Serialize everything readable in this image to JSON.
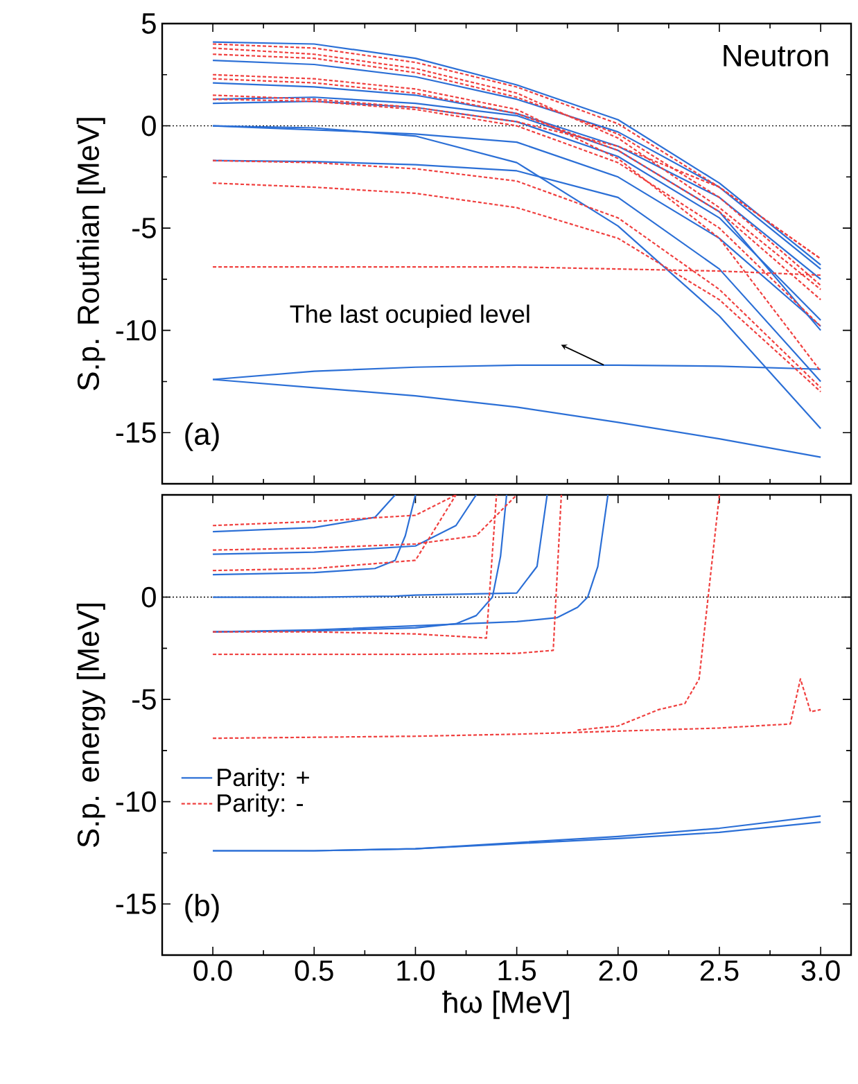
{
  "chart_data": [
    {
      "type": "line",
      "ylabel": "S.p. Routhian [MeV]",
      "xlim": [
        -0.25,
        3.15
      ],
      "ylim": [
        -17.5,
        5
      ],
      "xticks": [
        0.0,
        0.5,
        1.0,
        1.5,
        2.0,
        2.5,
        3.0
      ],
      "yticks": [
        -15,
        -10,
        -5,
        0,
        5
      ],
      "tick_labels": "y",
      "annotations": [
        "Neutron",
        "(a)",
        "The last ocupied level"
      ],
      "ref_lines": [
        {
          "axis": "y",
          "value": 0,
          "color": "#000000",
          "line_style": "dotted"
        }
      ],
      "series": [
        {
          "color": "#2b6fd6",
          "line_style": "solid",
          "x": [
            0,
            0.5,
            1,
            1.5,
            2,
            2.5,
            3
          ],
          "values": [
            -12.4,
            -12.8,
            -13.2,
            -13.75,
            -14.5,
            -15.3,
            -16.2
          ]
        },
        {
          "color": "#2b6fd6",
          "line_style": "solid",
          "x": [
            0,
            0.5,
            1,
            1.5,
            2,
            2.5,
            3
          ],
          "values": [
            -12.4,
            -12.0,
            -11.8,
            -11.7,
            -11.7,
            -11.75,
            -11.9
          ]
        },
        {
          "color": "#2b6fd6",
          "line_style": "solid",
          "x": [
            0,
            0.5,
            1,
            1.5,
            2,
            2.5,
            3
          ],
          "values": [
            0,
            -0.1,
            -0.5,
            -1.8,
            -4.9,
            -9.3,
            -14.8
          ]
        },
        {
          "color": "#2b6fd6",
          "line_style": "solid",
          "x": [
            0,
            0.5,
            1,
            1.5,
            2,
            2.5,
            3
          ],
          "values": [
            -1.7,
            -1.75,
            -1.9,
            -2.2,
            -3.5,
            -7,
            -12.5
          ]
        },
        {
          "color": "#2b6fd6",
          "line_style": "solid",
          "x": [
            0,
            0.5,
            1,
            1.5,
            2,
            2.5,
            3
          ],
          "values": [
            0,
            -0.2,
            -0.4,
            -0.8,
            -2.5,
            -5.5,
            -9.8
          ]
        },
        {
          "color": "#2b6fd6",
          "line_style": "solid",
          "x": [
            0,
            0.5,
            1,
            1.5,
            2,
            2.5,
            3
          ],
          "values": [
            1.1,
            1.2,
            0.9,
            0.2,
            -1.5,
            -4.5,
            -9.5
          ]
        },
        {
          "color": "#2b6fd6",
          "line_style": "solid",
          "x": [
            0,
            0.5,
            1,
            1.5,
            2,
            2.5,
            3
          ],
          "values": [
            2.1,
            1.9,
            1.5,
            0.6,
            -1.0,
            -3.5,
            -7.5
          ]
        },
        {
          "color": "#2b6fd6",
          "line_style": "solid",
          "x": [
            0,
            0.5,
            1,
            1.5,
            2,
            2.5,
            3
          ],
          "values": [
            3.2,
            3.0,
            2.4,
            1.3,
            -0.3,
            -3.0,
            -7.0
          ]
        },
        {
          "color": "#2b6fd6",
          "line_style": "solid",
          "x": [
            0,
            0.5,
            1,
            1.5,
            2,
            2.5,
            3
          ],
          "values": [
            4.1,
            4.0,
            3.3,
            2.0,
            0.3,
            -2.8,
            -6.8
          ]
        },
        {
          "color": "#2b6fd6",
          "line_style": "solid",
          "x": [
            0,
            0.5,
            1,
            1.5,
            2,
            2.5,
            3
          ],
          "values": [
            1.3,
            1.4,
            1.1,
            0.5,
            -1.2,
            -4.2,
            -10.0
          ]
        },
        {
          "color": "#f0403f",
          "line_style": "dashed",
          "x": [
            0,
            0.5,
            1,
            1.5,
            2,
            2.5,
            3
          ],
          "values": [
            -6.9,
            -6.9,
            -6.9,
            -6.9,
            -7.0,
            -7.1,
            -7.3
          ]
        },
        {
          "color": "#f0403f",
          "line_style": "dashed",
          "x": [
            0,
            0.5,
            1,
            1.5,
            2,
            2.5,
            3
          ],
          "values": [
            -2.8,
            -3.0,
            -3.3,
            -4.0,
            -5.5,
            -8.5,
            -13
          ]
        },
        {
          "color": "#f0403f",
          "line_style": "dashed",
          "x": [
            0,
            0.5,
            1,
            1.5,
            2,
            2.5,
            3
          ],
          "values": [
            -1.7,
            -1.8,
            -2.1,
            -2.7,
            -4.5,
            -8.0,
            -12.8
          ]
        },
        {
          "color": "#f0403f",
          "line_style": "dashed",
          "x": [
            0,
            0.5,
            1,
            1.5,
            2,
            2.5,
            3
          ],
          "values": [
            1.3,
            1.2,
            0.8,
            0,
            -1.8,
            -5,
            -9.8
          ]
        },
        {
          "color": "#f0403f",
          "line_style": "dashed",
          "x": [
            0,
            0.5,
            1,
            1.5,
            2,
            2.5,
            3
          ],
          "values": [
            2.3,
            2.1,
            1.6,
            0.6,
            -1.2,
            -4.2,
            -8.5
          ]
        },
        {
          "color": "#f0403f",
          "line_style": "dashed",
          "x": [
            0,
            0.5,
            1,
            1.5,
            2,
            2.5,
            3
          ],
          "values": [
            3.5,
            3.3,
            2.6,
            1.4,
            -0.4,
            -3.5,
            -7.8
          ]
        },
        {
          "color": "#f0403f",
          "line_style": "dashed",
          "x": [
            0,
            0.5,
            1,
            1.5,
            2,
            2.5,
            3
          ],
          "values": [
            4.0,
            3.8,
            3.1,
            1.9,
            0.1,
            -3.0,
            -6.5
          ]
        },
        {
          "color": "#f0403f",
          "line_style": "dashed",
          "x": [
            0,
            0.5,
            1,
            1.5,
            2,
            2.5,
            3
          ],
          "values": [
            3.8,
            3.5,
            2.8,
            1.6,
            -0.6,
            -4.0,
            -8.0
          ]
        },
        {
          "color": "#f0403f",
          "line_style": "dashed",
          "x": [
            0,
            0.5,
            1,
            1.5,
            2,
            2.5,
            3
          ],
          "values": [
            2.5,
            2.3,
            1.8,
            0.8,
            -1.6,
            -5.5,
            -12.0
          ]
        },
        {
          "color": "#f0403f",
          "line_style": "dashed",
          "x": [
            0,
            0.5,
            1,
            1.5,
            2,
            2.5,
            3
          ],
          "values": [
            1.5,
            1.3,
            0.9,
            0.2,
            -1.0,
            -3.0,
            -6.5
          ]
        }
      ]
    },
    {
      "type": "line",
      "xlabel": "ħω [MeV]",
      "ylabel": "S.p. energy [MeV]",
      "xlim": [
        -0.25,
        3.15
      ],
      "ylim": [
        -17.5,
        5
      ],
      "xticks": [
        {
          "value": 0,
          "label": "0.0"
        },
        0.5,
        {
          "value": 1,
          "label": "1.0"
        },
        1.5,
        {
          "value": 2,
          "label": "2.0"
        },
        2.5,
        {
          "value": 3,
          "label": "3.0"
        }
      ],
      "yticks": [
        -15,
        -10,
        -5,
        0
      ],
      "legend": "left",
      "annotations": [
        "(b)"
      ],
      "ref_lines": [
        {
          "axis": "y",
          "value": 0,
          "color": "#000000",
          "line_style": "dotted"
        }
      ],
      "series": [
        {
          "name": "Parity: +",
          "color": "#2b6fd6",
          "line_style": "solid",
          "x": [
            0,
            0.5,
            1,
            1.5,
            2,
            2.5,
            3
          ],
          "values": [
            -12.4,
            -12.4,
            -12.3,
            -12.0,
            -11.7,
            -11.3,
            -10.7
          ]
        },
        {
          "color": "#2b6fd6",
          "line_style": "solid",
          "x": [
            0,
            0.5,
            1,
            1.5,
            2,
            2.5,
            3
          ],
          "values": [
            -12.4,
            -12.4,
            -12.3,
            -12.05,
            -11.8,
            -11.5,
            -11.0
          ]
        },
        {
          "color": "#2b6fd6",
          "line_style": "solid",
          "x": [
            0,
            0.5,
            1,
            1.5,
            1.7,
            1.8,
            1.85,
            1.9,
            1.95
          ],
          "values": [
            -1.7,
            -1.6,
            -1.4,
            -1.2,
            -1.0,
            -0.5,
            0,
            1.5,
            5
          ]
        },
        {
          "color": "#2b6fd6",
          "line_style": "solid",
          "x": [
            0,
            0.5,
            1,
            1.2,
            1.3,
            1.38,
            1.42,
            1.45
          ],
          "values": [
            -1.7,
            -1.65,
            -1.5,
            -1.3,
            -0.9,
            0,
            2,
            5
          ]
        },
        {
          "color": "#2b6fd6",
          "line_style": "solid",
          "x": [
            0,
            0.5,
            0.9,
            1.0,
            1.5,
            1.6,
            1.65
          ],
          "values": [
            0,
            0,
            0.05,
            0.1,
            0.2,
            1.5,
            5
          ]
        },
        {
          "color": "#2b6fd6",
          "line_style": "solid",
          "x": [
            0,
            0.5,
            0.8,
            0.9,
            0.95,
            1.0
          ],
          "values": [
            1.1,
            1.2,
            1.4,
            1.8,
            3,
            5
          ]
        },
        {
          "color": "#2b6fd6",
          "line_style": "solid",
          "x": [
            0,
            0.5,
            1.0,
            1.2,
            1.3
          ],
          "values": [
            2.1,
            2.2,
            2.5,
            3.5,
            5
          ]
        },
        {
          "color": "#2b6fd6",
          "line_style": "solid",
          "x": [
            0,
            0.5,
            0.8,
            0.9
          ],
          "values": [
            3.2,
            3.4,
            3.9,
            5
          ]
        },
        {
          "name": "Parity: -",
          "color": "#f0403f",
          "line_style": "dashed",
          "x": [
            0,
            0.5,
            1,
            1.5,
            2,
            2.5,
            2.85,
            2.9,
            2.95,
            3.0
          ],
          "values": [
            -6.9,
            -6.85,
            -6.8,
            -6.7,
            -6.55,
            -6.4,
            -6.2,
            -4,
            -5.6,
            -5.5
          ]
        },
        {
          "color": "#f0403f",
          "line_style": "dashed",
          "x": [
            0,
            0.5,
            1,
            1.5,
            1.68,
            1.72
          ],
          "values": [
            -2.8,
            -2.8,
            -2.8,
            -2.75,
            -2.6,
            5
          ]
        },
        {
          "color": "#f0403f",
          "line_style": "dashed",
          "x": [
            0,
            0.5,
            1,
            1.35,
            1.4
          ],
          "values": [
            -1.7,
            -1.7,
            -1.8,
            -2.0,
            5
          ]
        },
        {
          "color": "#f0403f",
          "line_style": "dashed",
          "x": [
            1.8,
            2.0,
            2.2,
            2.33,
            2.4,
            2.5
          ],
          "values": [
            -6.5,
            -6.3,
            -5.5,
            -5.2,
            -4,
            5
          ]
        },
        {
          "color": "#f0403f",
          "line_style": "dashed",
          "x": [
            0,
            0.5,
            1.0,
            1.2
          ],
          "values": [
            3.5,
            3.7,
            4.0,
            5
          ]
        },
        {
          "color": "#f0403f",
          "line_style": "dashed",
          "x": [
            0,
            0.5,
            1.0,
            1.3,
            1.5
          ],
          "values": [
            2.3,
            2.4,
            2.6,
            3.0,
            5
          ]
        },
        {
          "color": "#f0403f",
          "line_style": "dashed",
          "x": [
            0,
            0.5,
            1.0,
            1.2
          ],
          "values": [
            1.3,
            1.4,
            1.8,
            5
          ]
        }
      ]
    }
  ]
}
